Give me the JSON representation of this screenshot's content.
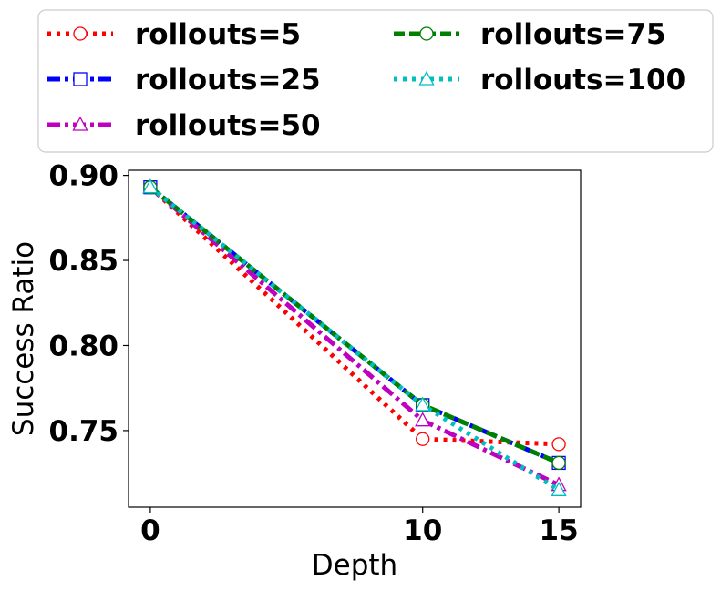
{
  "chart_data": {
    "type": "line",
    "title": "",
    "xlabel": "Depth",
    "ylabel": "Success Ratio",
    "x": [
      0,
      10,
      15
    ],
    "xlim": [
      -0.8,
      15.8
    ],
    "ylim": [
      0.705,
      0.903
    ],
    "xticks": [
      "0",
      "10",
      "15"
    ],
    "yticks": [
      "0.75",
      "0.80",
      "0.85",
      "0.90"
    ],
    "grid": false,
    "legend_position": "top (above plot, two columns)",
    "series": [
      {
        "name": "rollouts=5",
        "values": [
          0.893,
          0.745,
          0.742
        ],
        "color": "#ff0000",
        "linestyle": "dotted",
        "marker": "circle"
      },
      {
        "name": "rollouts=25",
        "values": [
          0.893,
          0.765,
          0.731
        ],
        "color": "#0000ff",
        "linestyle": "dashdot",
        "marker": "square"
      },
      {
        "name": "rollouts=50",
        "values": [
          0.893,
          0.756,
          0.718
        ],
        "color": "#bf00bf",
        "linestyle": "dashdot",
        "marker": "triangle"
      },
      {
        "name": "rollouts=75",
        "values": [
          0.893,
          0.765,
          0.731
        ],
        "color": "#008000",
        "linestyle": "dashed",
        "marker": "circle"
      },
      {
        "name": "rollouts=100",
        "values": [
          0.893,
          0.765,
          0.715
        ],
        "color": "#00bfbf",
        "linestyle": "dotted",
        "marker": "triangle"
      }
    ]
  }
}
